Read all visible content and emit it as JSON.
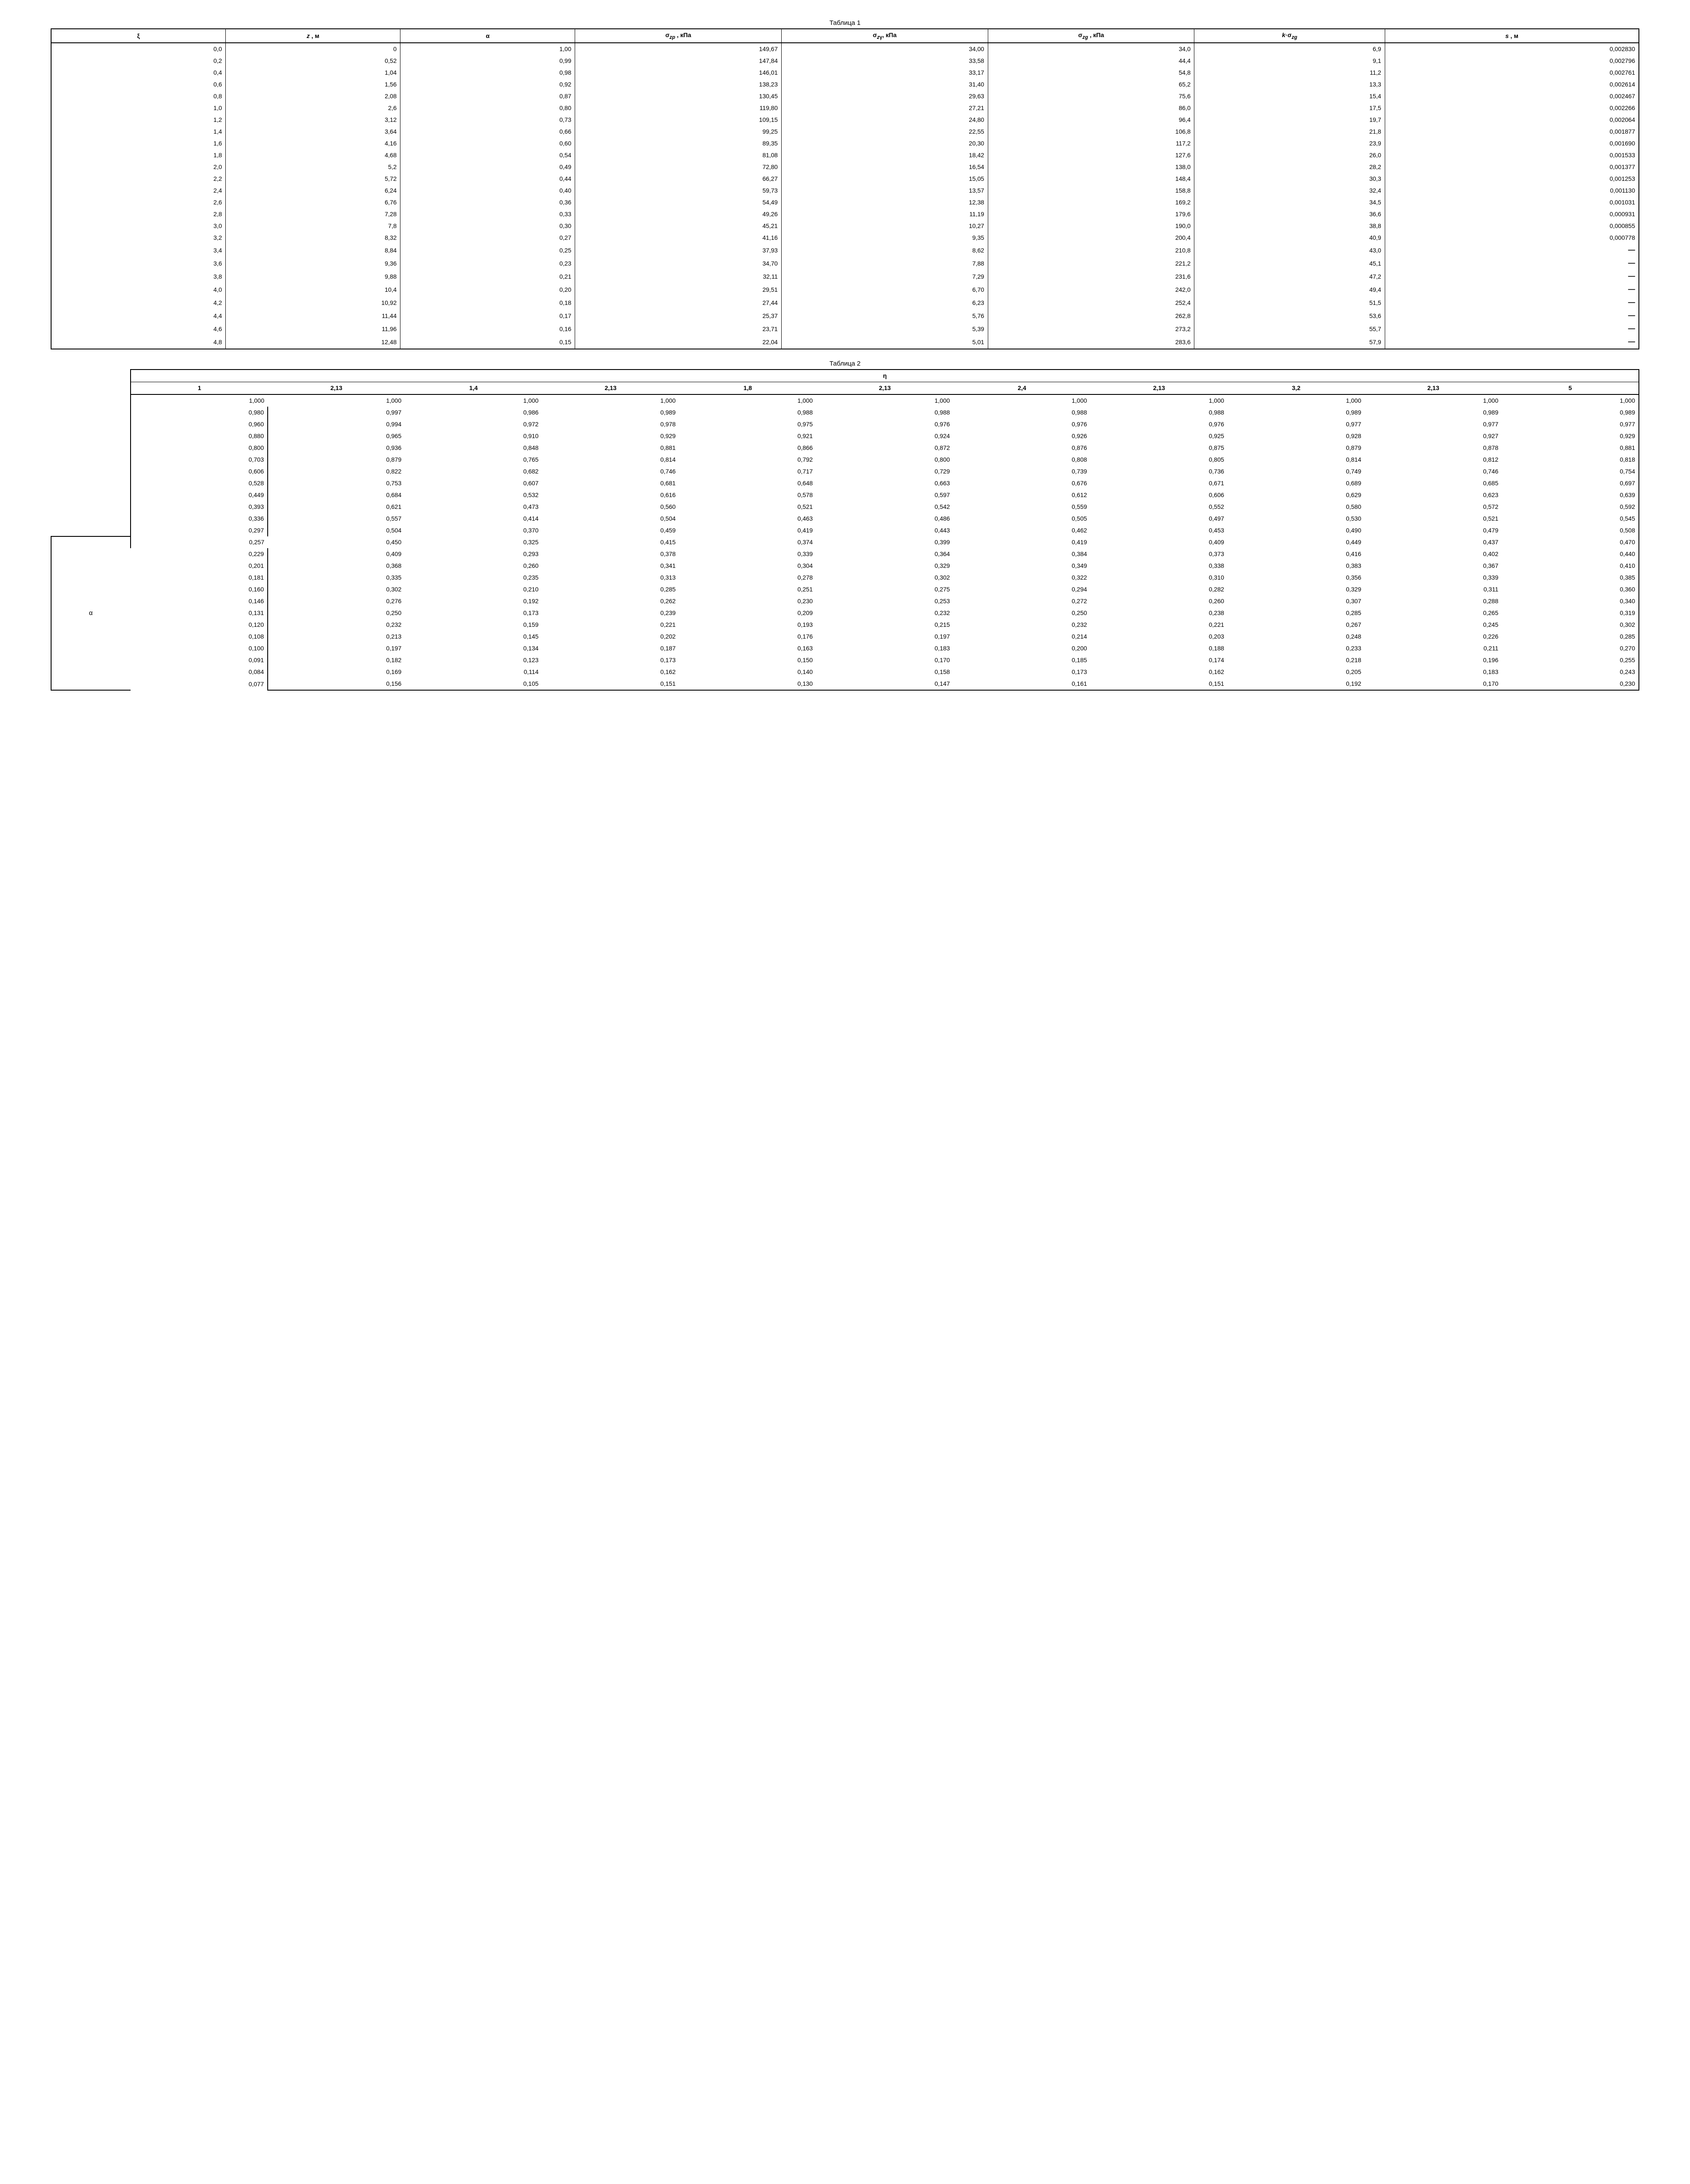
{
  "table1": {
    "title": "Таблица 1",
    "headers": [
      "ξ",
      "z , м",
      "α",
      "σ_zp , кПа",
      "σ_zγ , кПа",
      "σ_zg , кПа",
      "k·σ_zg",
      "s , м"
    ],
    "header_html": [
      "ξ",
      "<i>z</i> , м",
      "α",
      "σ<sub><i>zp</i></sub> , кПа",
      "σ<sub><i>z</i>γ</sub>, кПа",
      "σ<sub><i>zg</i></sub> , кПа",
      "<i>k</i>·σ<sub><i>zg</i></sub>",
      "<i>s</i> , м"
    ],
    "col_widths": [
      "11%",
      "11%",
      "11%",
      "13%",
      "13%",
      "13%",
      "12%",
      "16%"
    ],
    "rows": [
      [
        "0,0",
        "0",
        "1,00",
        "149,67",
        "34,00",
        "34,0",
        "6,9",
        "0,002830"
      ],
      [
        "0,2",
        "0,52",
        "0,99",
        "147,84",
        "33,58",
        "44,4",
        "9,1",
        "0,002796"
      ],
      [
        "0,4",
        "1,04",
        "0,98",
        "146,01",
        "33,17",
        "54,8",
        "11,2",
        "0,002761"
      ],
      [
        "0,6",
        "1,56",
        "0,92",
        "138,23",
        "31,40",
        "65,2",
        "13,3",
        "0,002614"
      ],
      [
        "0,8",
        "2,08",
        "0,87",
        "130,45",
        "29,63",
        "75,6",
        "15,4",
        "0,002467"
      ],
      [
        "1,0",
        "2,6",
        "0,80",
        "119,80",
        "27,21",
        "86,0",
        "17,5",
        "0,002266"
      ],
      [
        "1,2",
        "3,12",
        "0,73",
        "109,15",
        "24,80",
        "96,4",
        "19,7",
        "0,002064"
      ],
      [
        "1,4",
        "3,64",
        "0,66",
        "99,25",
        "22,55",
        "106,8",
        "21,8",
        "0,001877"
      ],
      [
        "1,6",
        "4,16",
        "0,60",
        "89,35",
        "20,30",
        "117,2",
        "23,9",
        "0,001690"
      ],
      [
        "1,8",
        "4,68",
        "0,54",
        "81,08",
        "18,42",
        "127,6",
        "26,0",
        "0,001533"
      ],
      [
        "2,0",
        "5,2",
        "0,49",
        "72,80",
        "16,54",
        "138,0",
        "28,2",
        "0,001377"
      ],
      [
        "2,2",
        "5,72",
        "0,44",
        "66,27",
        "15,05",
        "148,4",
        "30,3",
        "0,001253"
      ],
      [
        "2,4",
        "6,24",
        "0,40",
        "59,73",
        "13,57",
        "158,8",
        "32,4",
        "0,001130"
      ],
      [
        "2,6",
        "6,76",
        "0,36",
        "54,49",
        "12,38",
        "169,2",
        "34,5",
        "0,001031"
      ],
      [
        "2,8",
        "7,28",
        "0,33",
        "49,26",
        "11,19",
        "179,6",
        "36,6",
        "0,000931"
      ],
      [
        "3,0",
        "7,8",
        "0,30",
        "45,21",
        "10,27",
        "190,0",
        "38,8",
        "0,000855"
      ],
      [
        "3,2",
        "8,32",
        "0,27",
        "41,16",
        "9,35",
        "200,4",
        "40,9",
        "0,000778"
      ],
      [
        "3,4",
        "8,84",
        "0,25",
        "37,93",
        "8,62",
        "210,8",
        "43,0",
        "—"
      ],
      [
        "3,6",
        "9,36",
        "0,23",
        "34,70",
        "7,88",
        "221,2",
        "45,1",
        "—"
      ],
      [
        "3,8",
        "9,88",
        "0,21",
        "32,11",
        "7,29",
        "231,6",
        "47,2",
        "—"
      ],
      [
        "4,0",
        "10,4",
        "0,20",
        "29,51",
        "6,70",
        "242,0",
        "49,4",
        "—"
      ],
      [
        "4,2",
        "10,92",
        "0,18",
        "27,44",
        "6,23",
        "252,4",
        "51,5",
        "—"
      ],
      [
        "4,4",
        "11,44",
        "0,17",
        "25,37",
        "5,76",
        "262,8",
        "53,6",
        "—"
      ],
      [
        "4,6",
        "11,96",
        "0,16",
        "23,71",
        "5,39",
        "273,2",
        "55,7",
        "—"
      ],
      [
        "4,8",
        "12,48",
        "0,15",
        "22,04",
        "5,01",
        "283,6",
        "57,9",
        "—"
      ]
    ]
  },
  "table2": {
    "title": "Таблица 2",
    "eta_label": "η",
    "alpha_label": "α",
    "sub_headers": [
      "1",
      "2,13",
      "1,4",
      "2,13",
      "1,8",
      "2,13",
      "2,4",
      "2,13",
      "3,2",
      "2,13",
      "5"
    ],
    "col_widths": [
      "5%",
      "8.6%",
      "8.6%",
      "8.6%",
      "8.6%",
      "8.6%",
      "8.6%",
      "8.6%",
      "8.6%",
      "8.6%",
      "8.6%",
      "8.6%"
    ],
    "rows": [
      [
        "1,000",
        "1,000",
        "1,000",
        "1,000",
        "1,000",
        "1,000",
        "1,000",
        "1,000",
        "1,000",
        "1,000",
        "1,000"
      ],
      [
        "0,980",
        "0,997",
        "0,986",
        "0,989",
        "0,988",
        "0,988",
        "0,988",
        "0,988",
        "0,989",
        "0,989",
        "0,989"
      ],
      [
        "0,960",
        "0,994",
        "0,972",
        "0,978",
        "0,975",
        "0,976",
        "0,976",
        "0,976",
        "0,977",
        "0,977",
        "0,977"
      ],
      [
        "0,880",
        "0,965",
        "0,910",
        "0,929",
        "0,921",
        "0,924",
        "0,926",
        "0,925",
        "0,928",
        "0,927",
        "0,929"
      ],
      [
        "0,800",
        "0,936",
        "0,848",
        "0,881",
        "0,866",
        "0,872",
        "0,876",
        "0,875",
        "0,879",
        "0,878",
        "0,881"
      ],
      [
        "0,703",
        "0,879",
        "0,765",
        "0,814",
        "0,792",
        "0,800",
        "0,808",
        "0,805",
        "0,814",
        "0,812",
        "0,818"
      ],
      [
        "0,606",
        "0,822",
        "0,682",
        "0,746",
        "0,717",
        "0,729",
        "0,739",
        "0,736",
        "0,749",
        "0,746",
        "0,754"
      ],
      [
        "0,528",
        "0,753",
        "0,607",
        "0,681",
        "0,648",
        "0,663",
        "0,676",
        "0,671",
        "0,689",
        "0,685",
        "0,697"
      ],
      [
        "0,449",
        "0,684",
        "0,532",
        "0,616",
        "0,578",
        "0,597",
        "0,612",
        "0,606",
        "0,629",
        "0,623",
        "0,639"
      ],
      [
        "0,393",
        "0,621",
        "0,473",
        "0,560",
        "0,521",
        "0,542",
        "0,559",
        "0,552",
        "0,580",
        "0,572",
        "0,592"
      ],
      [
        "0,336",
        "0,557",
        "0,414",
        "0,504",
        "0,463",
        "0,486",
        "0,505",
        "0,497",
        "0,530",
        "0,521",
        "0,545"
      ],
      [
        "0,297",
        "0,504",
        "0,370",
        "0,459",
        "0,419",
        "0,443",
        "0,462",
        "0,453",
        "0,490",
        "0,479",
        "0,508"
      ],
      [
        "0,257",
        "0,450",
        "0,325",
        "0,415",
        "0,374",
        "0,399",
        "0,419",
        "0,409",
        "0,449",
        "0,437",
        "0,470"
      ],
      [
        "0,229",
        "0,409",
        "0,293",
        "0,378",
        "0,339",
        "0,364",
        "0,384",
        "0,373",
        "0,416",
        "0,402",
        "0,440"
      ],
      [
        "0,201",
        "0,368",
        "0,260",
        "0,341",
        "0,304",
        "0,329",
        "0,349",
        "0,338",
        "0,383",
        "0,367",
        "0,410"
      ],
      [
        "0,181",
        "0,335",
        "0,235",
        "0,313",
        "0,278",
        "0,302",
        "0,322",
        "0,310",
        "0,356",
        "0,339",
        "0,385"
      ],
      [
        "0,160",
        "0,302",
        "0,210",
        "0,285",
        "0,251",
        "0,275",
        "0,294",
        "0,282",
        "0,329",
        "0,311",
        "0,360"
      ],
      [
        "0,146",
        "0,276",
        "0,192",
        "0,262",
        "0,230",
        "0,253",
        "0,272",
        "0,260",
        "0,307",
        "0,288",
        "0,340"
      ],
      [
        "0,131",
        "0,250",
        "0,173",
        "0,239",
        "0,209",
        "0,232",
        "0,250",
        "0,238",
        "0,285",
        "0,265",
        "0,319"
      ],
      [
        "0,120",
        "0,232",
        "0,159",
        "0,221",
        "0,193",
        "0,215",
        "0,232",
        "0,221",
        "0,267",
        "0,245",
        "0,302"
      ],
      [
        "0,108",
        "0,213",
        "0,145",
        "0,202",
        "0,176",
        "0,197",
        "0,214",
        "0,203",
        "0,248",
        "0,226",
        "0,285"
      ],
      [
        "0,100",
        "0,197",
        "0,134",
        "0,187",
        "0,163",
        "0,183",
        "0,200",
        "0,188",
        "0,233",
        "0,211",
        "0,270"
      ],
      [
        "0,091",
        "0,182",
        "0,123",
        "0,173",
        "0,150",
        "0,170",
        "0,185",
        "0,174",
        "0,218",
        "0,196",
        "0,255"
      ],
      [
        "0,084",
        "0,169",
        "0,114",
        "0,162",
        "0,140",
        "0,158",
        "0,173",
        "0,162",
        "0,205",
        "0,183",
        "0,243"
      ],
      [
        "0,077",
        "0,156",
        "0,105",
        "0,151",
        "0,130",
        "0,147",
        "0,161",
        "0,151",
        "0,192",
        "0,170",
        "0,230"
      ]
    ],
    "alpha_row_index": 12,
    "spacer_rows_before_alpha": 12
  }
}
